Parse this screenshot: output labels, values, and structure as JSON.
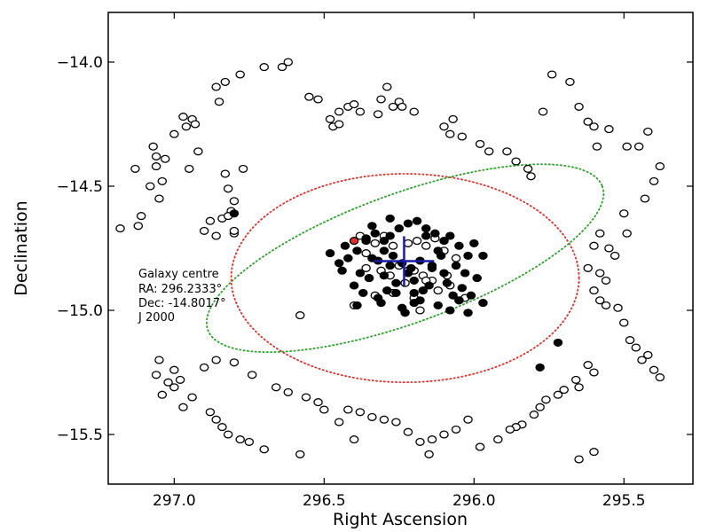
{
  "chart_data": {
    "type": "scatter",
    "title": "",
    "xlabel": "Right Ascension",
    "ylabel": "Declination",
    "xlim": [
      297.22,
      295.27
    ],
    "ylim": [
      -15.7,
      -13.8
    ],
    "x_ticks": [
      297.0,
      296.5,
      296.0,
      295.5
    ],
    "x_tick_labels": [
      "297.0",
      "296.5",
      "296.0",
      "295.5"
    ],
    "y_ticks": [
      -14.0,
      -14.5,
      -15.0,
      -15.5
    ],
    "y_tick_labels": [
      "−14.0",
      "−14.5",
      "−15.0",
      "−15.5"
    ],
    "grid": false,
    "annotation_lines": [
      "Galaxy centre",
      "RA: 296.2333°",
      "Dec: -14.8017°",
      "J 2000"
    ],
    "galaxy_centre": {
      "ra": 296.2333,
      "dec": -14.8017
    },
    "cross": {
      "ra_halfwidth": 0.1,
      "dec_halfheight": 0.1,
      "color": "#1a1aa8"
    },
    "ellipses": [
      {
        "name": "red-ellipse",
        "color": "#e0302a",
        "center_ra": 296.23,
        "center_dec": -14.87,
        "semi_ra": 0.58,
        "semi_dec": 0.42,
        "angle_deg": 0
      },
      {
        "name": "green-ellipse",
        "color": "#2aa02a",
        "center_ra": 296.23,
        "center_dec": -14.79,
        "semi_ra": 0.7,
        "semi_dec": 0.26,
        "angle_deg": 20
      }
    ],
    "series": [
      {
        "name": "open-members",
        "marker": "open-circle",
        "color": "#000000",
        "ra": [
          297.18,
          297.13,
          297.11,
          297.12,
          297.08,
          297.06,
          297.05,
          297.04,
          297.07,
          297.06,
          297.03,
          297.0,
          296.97,
          296.96,
          296.94,
          296.93,
          296.92,
          296.95,
          296.86,
          296.85,
          296.83,
          296.82,
          296.8,
          296.81,
          296.8,
          296.84,
          296.82,
          296.77,
          296.78,
          296.83,
          296.88,
          296.9,
          296.86,
          296.8,
          296.7,
          296.64,
          296.62,
          296.55,
          296.52,
          296.48,
          296.47,
          296.45,
          296.45,
          296.42,
          296.4,
          296.38,
          296.32,
          296.31,
          296.29,
          296.27,
          296.25,
          296.24,
          296.2,
          296.1,
          296.08,
          296.07,
          296.04,
          295.98,
          295.95,
          295.89,
          295.86,
          295.82,
          295.81,
          295.77,
          295.74,
          295.68,
          295.65,
          295.62,
          295.6,
          295.59,
          295.55,
          295.49,
          295.45,
          295.42,
          295.38,
          295.4,
          295.43,
          295.5,
          295.49,
          295.58,
          295.6,
          295.55,
          295.53,
          295.58,
          295.56,
          295.62,
          295.6,
          295.58,
          295.56,
          295.52,
          295.5,
          295.48,
          295.46,
          295.42,
          295.44,
          295.4,
          295.38,
          295.62,
          295.6,
          295.66,
          295.65,
          295.7,
          295.72,
          295.76,
          295.78,
          295.8,
          295.84,
          295.86,
          295.88,
          295.92,
          295.98,
          296.02,
          296.06,
          296.1,
          296.14,
          296.18,
          296.22,
          296.26,
          296.3,
          296.34,
          296.38,
          296.42,
          296.45,
          296.5,
          296.52,
          296.56,
          296.62,
          296.66,
          296.74,
          296.8,
          296.86,
          296.9,
          296.94,
          296.97,
          297.0,
          297.02,
          297.04,
          297.05,
          297.06,
          296.98,
          297.0,
          296.88,
          296.86,
          296.84,
          296.82,
          296.78,
          296.75,
          296.7,
          296.58,
          296.4,
          296.15,
          295.98,
          295.65,
          295.6,
          296.38,
          296.36,
          296.33,
          296.3,
          296.27,
          296.22,
          296.19,
          296.16,
          296.13,
          296.1,
          296.06,
          296.31,
          296.28,
          296.25,
          296.2,
          296.17,
          296.14,
          296.08,
          296.35,
          296.23,
          296.12,
          296.03,
          296.4,
          296.27,
          296.2,
          296.05,
          296.33,
          296.22,
          296.16,
          296.09,
          296.36,
          296.18,
          296.58
        ],
        "dec": [
          -14.67,
          -14.43,
          -14.62,
          -14.66,
          -14.5,
          -14.42,
          -14.55,
          -14.48,
          -14.34,
          -14.38,
          -14.39,
          -14.29,
          -14.22,
          -14.26,
          -14.23,
          -14.25,
          -14.36,
          -14.43,
          -14.1,
          -14.16,
          -14.45,
          -14.51,
          -14.56,
          -14.6,
          -14.69,
          -14.63,
          -14.62,
          -14.43,
          -14.05,
          -14.08,
          -14.64,
          -14.68,
          -14.7,
          -14.68,
          -14.02,
          -14.02,
          -14.0,
          -14.14,
          -14.15,
          -14.23,
          -14.26,
          -14.2,
          -14.25,
          -14.18,
          -14.17,
          -14.2,
          -14.21,
          -14.15,
          -14.1,
          -14.18,
          -14.16,
          -14.18,
          -14.2,
          -14.26,
          -14.29,
          -14.23,
          -14.3,
          -14.33,
          -14.36,
          -14.36,
          -14.4,
          -14.43,
          -14.46,
          -14.2,
          -14.05,
          -14.08,
          -14.18,
          -14.24,
          -14.26,
          -14.34,
          -14.27,
          -14.34,
          -14.34,
          -14.28,
          -14.42,
          -14.48,
          -14.55,
          -14.61,
          -14.69,
          -14.69,
          -14.74,
          -14.75,
          -14.78,
          -14.85,
          -14.88,
          -14.83,
          -14.92,
          -14.96,
          -14.98,
          -14.99,
          -15.05,
          -15.12,
          -15.15,
          -15.18,
          -15.2,
          -15.24,
          -15.27,
          -15.22,
          -15.25,
          -15.28,
          -15.31,
          -15.32,
          -15.34,
          -15.36,
          -15.39,
          -15.42,
          -15.46,
          -15.47,
          -15.48,
          -15.52,
          -15.55,
          -15.44,
          -15.48,
          -15.5,
          -15.52,
          -15.53,
          -15.49,
          -15.45,
          -15.44,
          -15.43,
          -15.41,
          -15.4,
          -15.45,
          -15.4,
          -15.37,
          -15.35,
          -15.33,
          -15.31,
          -15.26,
          -15.21,
          -15.2,
          -15.23,
          -15.35,
          -15.39,
          -15.31,
          -15.29,
          -15.34,
          -15.2,
          -15.26,
          -15.28,
          -15.24,
          -15.41,
          -15.44,
          -15.47,
          -15.5,
          -15.52,
          -15.53,
          -15.56,
          -15.58,
          -15.52,
          -15.58,
          -15.55,
          -15.6,
          -15.57,
          -14.7,
          -14.77,
          -14.73,
          -14.7,
          -14.74,
          -14.73,
          -14.72,
          -14.74,
          -14.71,
          -14.76,
          -14.79,
          -14.84,
          -14.86,
          -14.82,
          -14.84,
          -14.86,
          -14.88,
          -14.9,
          -14.87,
          -14.89,
          -14.92,
          -14.95,
          -14.98,
          -14.93,
          -14.95,
          -14.96,
          -14.94,
          -14.84,
          -14.88,
          -14.86,
          -14.83,
          -15.0,
          -15.02,
          -15.0
        ]
      },
      {
        "name": "filled-members",
        "marker": "filled-circle",
        "color": "#000000",
        "ra": [
          296.33,
          296.36,
          296.39,
          296.42,
          296.45,
          296.3,
          296.28,
          296.25,
          296.22,
          296.19,
          296.16,
          296.13,
          296.1,
          296.08,
          296.05,
          296.02,
          296.0,
          296.34,
          296.32,
          296.27,
          296.24,
          296.21,
          296.18,
          296.14,
          296.11,
          296.06,
          296.03,
          296.38,
          296.35,
          296.3,
          296.26,
          296.2,
          296.15,
          296.09,
          296.04,
          295.99,
          296.4,
          296.37,
          296.29,
          296.17,
          296.07,
          296.32,
          296.2,
          296.12,
          296.05,
          296.43,
          296.28,
          296.14,
          296.3,
          296.22,
          296.1,
          296.48,
          296.44,
          296.26,
          296.18,
          296.01,
          295.97,
          296.39,
          296.24,
          296.08,
          296.02,
          296.16,
          296.34,
          296.28,
          296.12,
          295.97,
          296.8,
          295.72,
          295.78,
          296.36,
          296.2,
          296.31,
          296.23
        ],
        "dec": [
          -14.69,
          -14.72,
          -14.76,
          -14.79,
          -14.81,
          -14.72,
          -14.7,
          -14.67,
          -14.65,
          -14.64,
          -14.67,
          -14.69,
          -14.72,
          -14.7,
          -14.74,
          -14.78,
          -14.73,
          -14.79,
          -14.8,
          -14.78,
          -14.81,
          -14.83,
          -14.8,
          -14.82,
          -14.78,
          -14.82,
          -14.85,
          -14.85,
          -14.87,
          -14.86,
          -14.89,
          -14.88,
          -14.9,
          -14.89,
          -14.91,
          -14.87,
          -14.9,
          -14.93,
          -14.92,
          -14.92,
          -14.94,
          -14.95,
          -14.97,
          -14.98,
          -14.96,
          -14.74,
          -14.82,
          -14.83,
          -14.76,
          -14.85,
          -14.85,
          -14.77,
          -14.84,
          -14.93,
          -14.96,
          -14.94,
          -14.97,
          -14.98,
          -14.99,
          -15.0,
          -15.01,
          -14.7,
          -14.66,
          -14.63,
          -14.76,
          -14.78,
          -14.61,
          -15.13,
          -15.23,
          -14.71,
          -14.93,
          -14.97,
          -15.01
        ]
      },
      {
        "name": "red-member",
        "marker": "filled-circle",
        "color": "#e0302a",
        "ra": [
          296.4
        ],
        "dec": [
          -14.72
        ]
      }
    ]
  }
}
